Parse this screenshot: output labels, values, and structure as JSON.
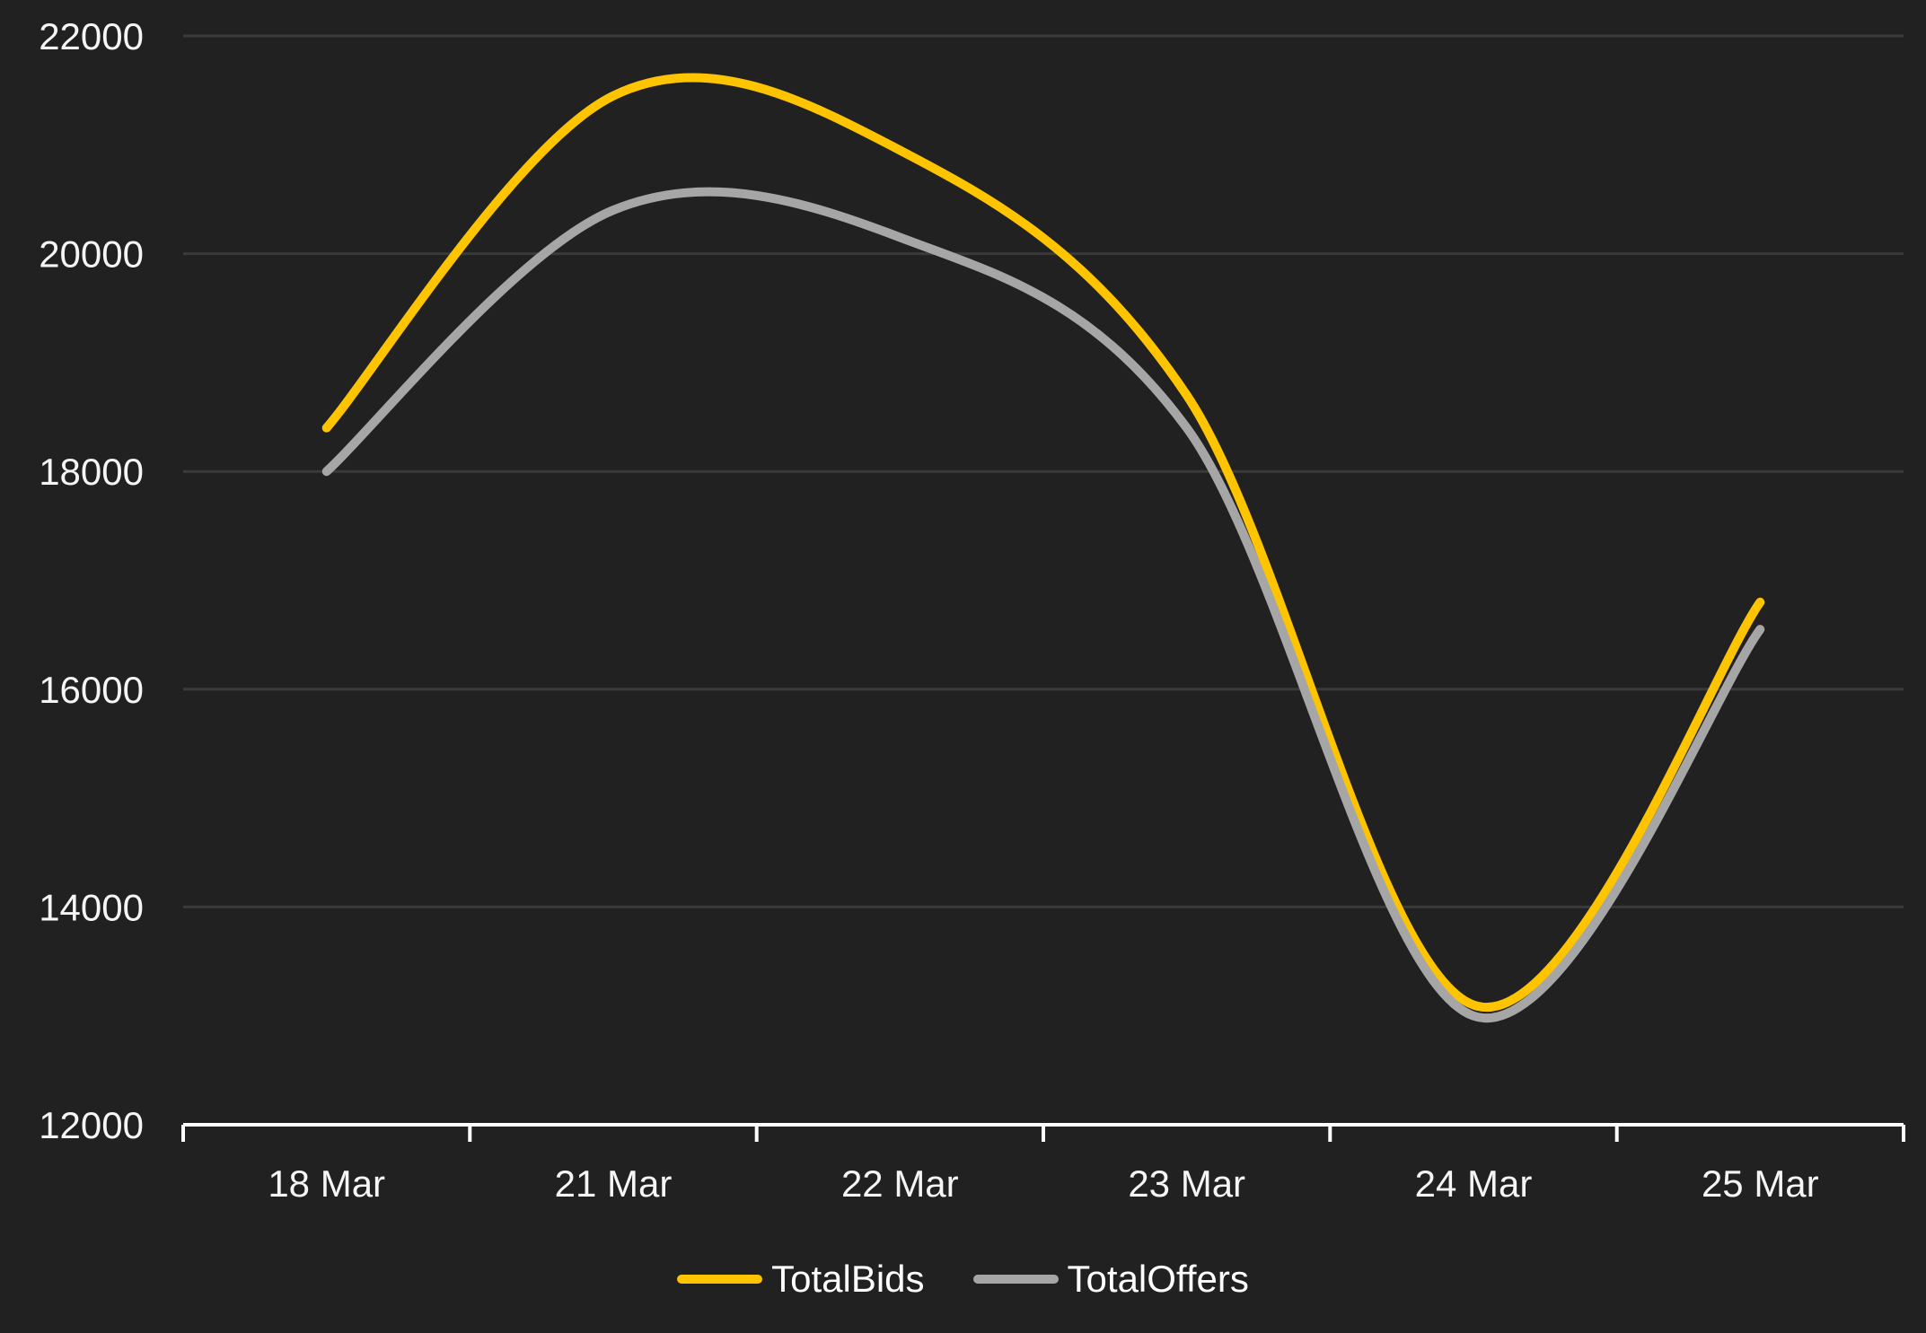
{
  "colors": {
    "background": "#212121",
    "gridline": "#3a3a3a",
    "axis_line": "#ffffff",
    "tick_text": "#f5f5f5",
    "legend_text": "#ffffff",
    "totalbids_line": "#FFC400",
    "totaloffers_line": "#A6A6A6"
  },
  "chart_data": {
    "type": "line",
    "title": "",
    "categories": [
      "18 Mar",
      "21 Mar",
      "22 Mar",
      "23 Mar",
      "24 Mar",
      "25 Mar"
    ],
    "series": [
      {
        "name": "TotalBids",
        "color": "#FFC400",
        "values": [
          18400,
          21450,
          20950,
          18700,
          13100,
          16800
        ]
      },
      {
        "name": "TotalOffers",
        "color": "#A6A6A6",
        "values": [
          18000,
          20400,
          20150,
          18400,
          13000,
          16550
        ]
      }
    ],
    "y_ticks": [
      12000,
      14000,
      16000,
      18000,
      20000,
      22000
    ],
    "ylim": [
      12000,
      22000
    ],
    "xlabel": "",
    "ylabel": "",
    "grid": "horizontal-only",
    "legend_position": "bottom-center",
    "curve": "smooth-spline"
  }
}
